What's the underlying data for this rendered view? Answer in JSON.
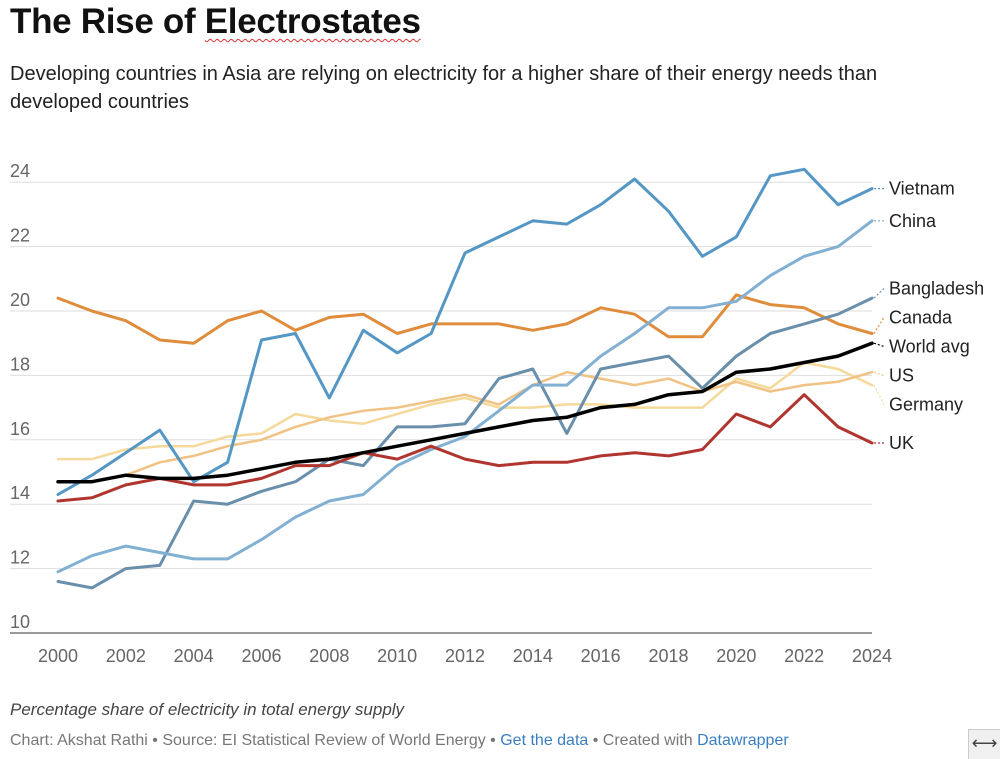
{
  "header": {
    "title_plain": "The Rise of ",
    "title_marked": "Electrostates",
    "subtitle": "Developing countries in Asia are relying on electricity for a higher share of their energy needs than developed countries"
  },
  "footer": {
    "notes": "Percentage share of electricity in total energy supply",
    "credit_chart": "Chart: Akshat Rathi",
    "credit_source": "Source: EI Statistical Review of World Energy",
    "link_get_data": "Get the data",
    "created_with": "Created with",
    "link_datawrapper": "Datawrapper",
    "resize_glyph": "⟷"
  },
  "chart_data": {
    "type": "line",
    "title": "The Rise of Electrostates",
    "subtitle": "Developing countries in Asia are relying on electricity for a higher share of their energy needs than developed countries",
    "xlabel": "",
    "ylabel": "",
    "xlim": [
      2000,
      2024
    ],
    "ylim": [
      10,
      25
    ],
    "xticks": [
      2000,
      2002,
      2004,
      2006,
      2008,
      2010,
      2012,
      2014,
      2016,
      2018,
      2020,
      2022,
      2024
    ],
    "yticks": [
      10,
      12,
      14,
      16,
      18,
      20,
      22,
      24
    ],
    "grid": true,
    "x": [
      2000,
      2001,
      2002,
      2003,
      2004,
      2005,
      2006,
      2007,
      2008,
      2009,
      2010,
      2011,
      2012,
      2013,
      2014,
      2015,
      2016,
      2017,
      2018,
      2019,
      2020,
      2021,
      2022,
      2023,
      2024
    ],
    "series": [
      {
        "name": "Germany",
        "color": "#f5d99a",
        "width": 2.5,
        "values": [
          15.4,
          15.4,
          15.7,
          15.8,
          15.8,
          16.1,
          16.2,
          16.8,
          16.6,
          16.5,
          16.8,
          17.1,
          17.3,
          17.0,
          17.0,
          17.1,
          17.1,
          17.0,
          17.0,
          17.0,
          17.9,
          17.6,
          18.4,
          18.2,
          17.7
        ]
      },
      {
        "name": "US",
        "color": "#f0c283",
        "width": 2.5,
        "values": [
          14.7,
          14.7,
          14.9,
          15.3,
          15.5,
          15.8,
          16.0,
          16.4,
          16.7,
          16.9,
          17.0,
          17.2,
          17.4,
          17.1,
          17.7,
          18.1,
          17.9,
          17.7,
          17.9,
          17.5,
          17.8,
          17.5,
          17.7,
          17.8,
          18.1
        ]
      },
      {
        "name": "Canada",
        "color": "#df8d3c",
        "width": 3,
        "values": [
          20.4,
          20.0,
          19.7,
          19.1,
          19.0,
          19.7,
          20.0,
          19.4,
          19.8,
          19.9,
          19.3,
          19.6,
          19.6,
          19.6,
          19.4,
          19.6,
          20.1,
          19.9,
          19.2,
          19.2,
          20.5,
          20.2,
          20.1,
          19.6,
          19.3
        ]
      },
      {
        "name": "Bangladesh",
        "color": "#6a8fab",
        "width": 3,
        "values": [
          11.6,
          11.4,
          12.0,
          12.1,
          14.1,
          14.0,
          14.4,
          14.7,
          15.4,
          15.2,
          16.4,
          16.4,
          16.5,
          17.9,
          18.2,
          16.2,
          18.2,
          18.4,
          18.6,
          17.6,
          18.6,
          19.3,
          19.6,
          19.9,
          20.4
        ]
      },
      {
        "name": "China",
        "color": "#82b0d2",
        "width": 3,
        "values": [
          11.9,
          12.4,
          12.7,
          12.5,
          12.3,
          12.3,
          12.9,
          13.6,
          14.1,
          14.3,
          15.2,
          15.7,
          16.1,
          16.9,
          17.7,
          17.7,
          18.6,
          19.3,
          20.1,
          20.1,
          20.3,
          21.1,
          21.7,
          22.0,
          22.8
        ]
      },
      {
        "name": "Vietnam",
        "color": "#5497c5",
        "width": 3,
        "values": [
          14.3,
          14.9,
          15.6,
          16.3,
          14.7,
          15.3,
          19.1,
          19.3,
          17.3,
          19.4,
          18.7,
          19.3,
          21.8,
          22.3,
          22.8,
          22.7,
          23.3,
          24.1,
          23.1,
          21.7,
          22.3,
          24.2,
          24.4,
          23.3,
          23.8
        ]
      },
      {
        "name": "UK",
        "color": "#b0352e",
        "width": 3,
        "values": [
          14.1,
          14.2,
          14.6,
          14.8,
          14.6,
          14.6,
          14.8,
          15.2,
          15.2,
          15.6,
          15.4,
          15.8,
          15.4,
          15.2,
          15.3,
          15.3,
          15.5,
          15.6,
          15.5,
          15.7,
          16.8,
          16.4,
          17.4,
          16.4,
          15.9
        ]
      },
      {
        "name": "World avg",
        "color": "#000000",
        "width": 3.5,
        "values": [
          14.7,
          14.7,
          14.9,
          14.8,
          14.8,
          14.9,
          15.1,
          15.3,
          15.4,
          15.6,
          15.8,
          16.0,
          16.2,
          16.4,
          16.6,
          16.7,
          17.0,
          17.1,
          17.4,
          17.5,
          18.1,
          18.2,
          18.4,
          18.6,
          19.0
        ]
      }
    ],
    "legend": {
      "placement": "right",
      "style": "direct line-end labels"
    },
    "end_labels": [
      {
        "name": "Vietnam",
        "text": "Vietnam",
        "label_value": 23.8
      },
      {
        "name": "China",
        "text": "China",
        "label_value": 22.8
      },
      {
        "name": "Bangladesh",
        "text": "Bangladesh",
        "label_value": 20.7
      },
      {
        "name": "Canada",
        "text": "Canada",
        "label_value": 19.8
      },
      {
        "name": "World avg",
        "text": "World avg",
        "label_value": 18.9
      },
      {
        "name": "US",
        "text": "US",
        "label_value": 18.0
      },
      {
        "name": "Germany",
        "text": "Germany",
        "label_value": 17.1
      },
      {
        "name": "UK",
        "text": "UK",
        "label_value": 15.9
      }
    ]
  }
}
